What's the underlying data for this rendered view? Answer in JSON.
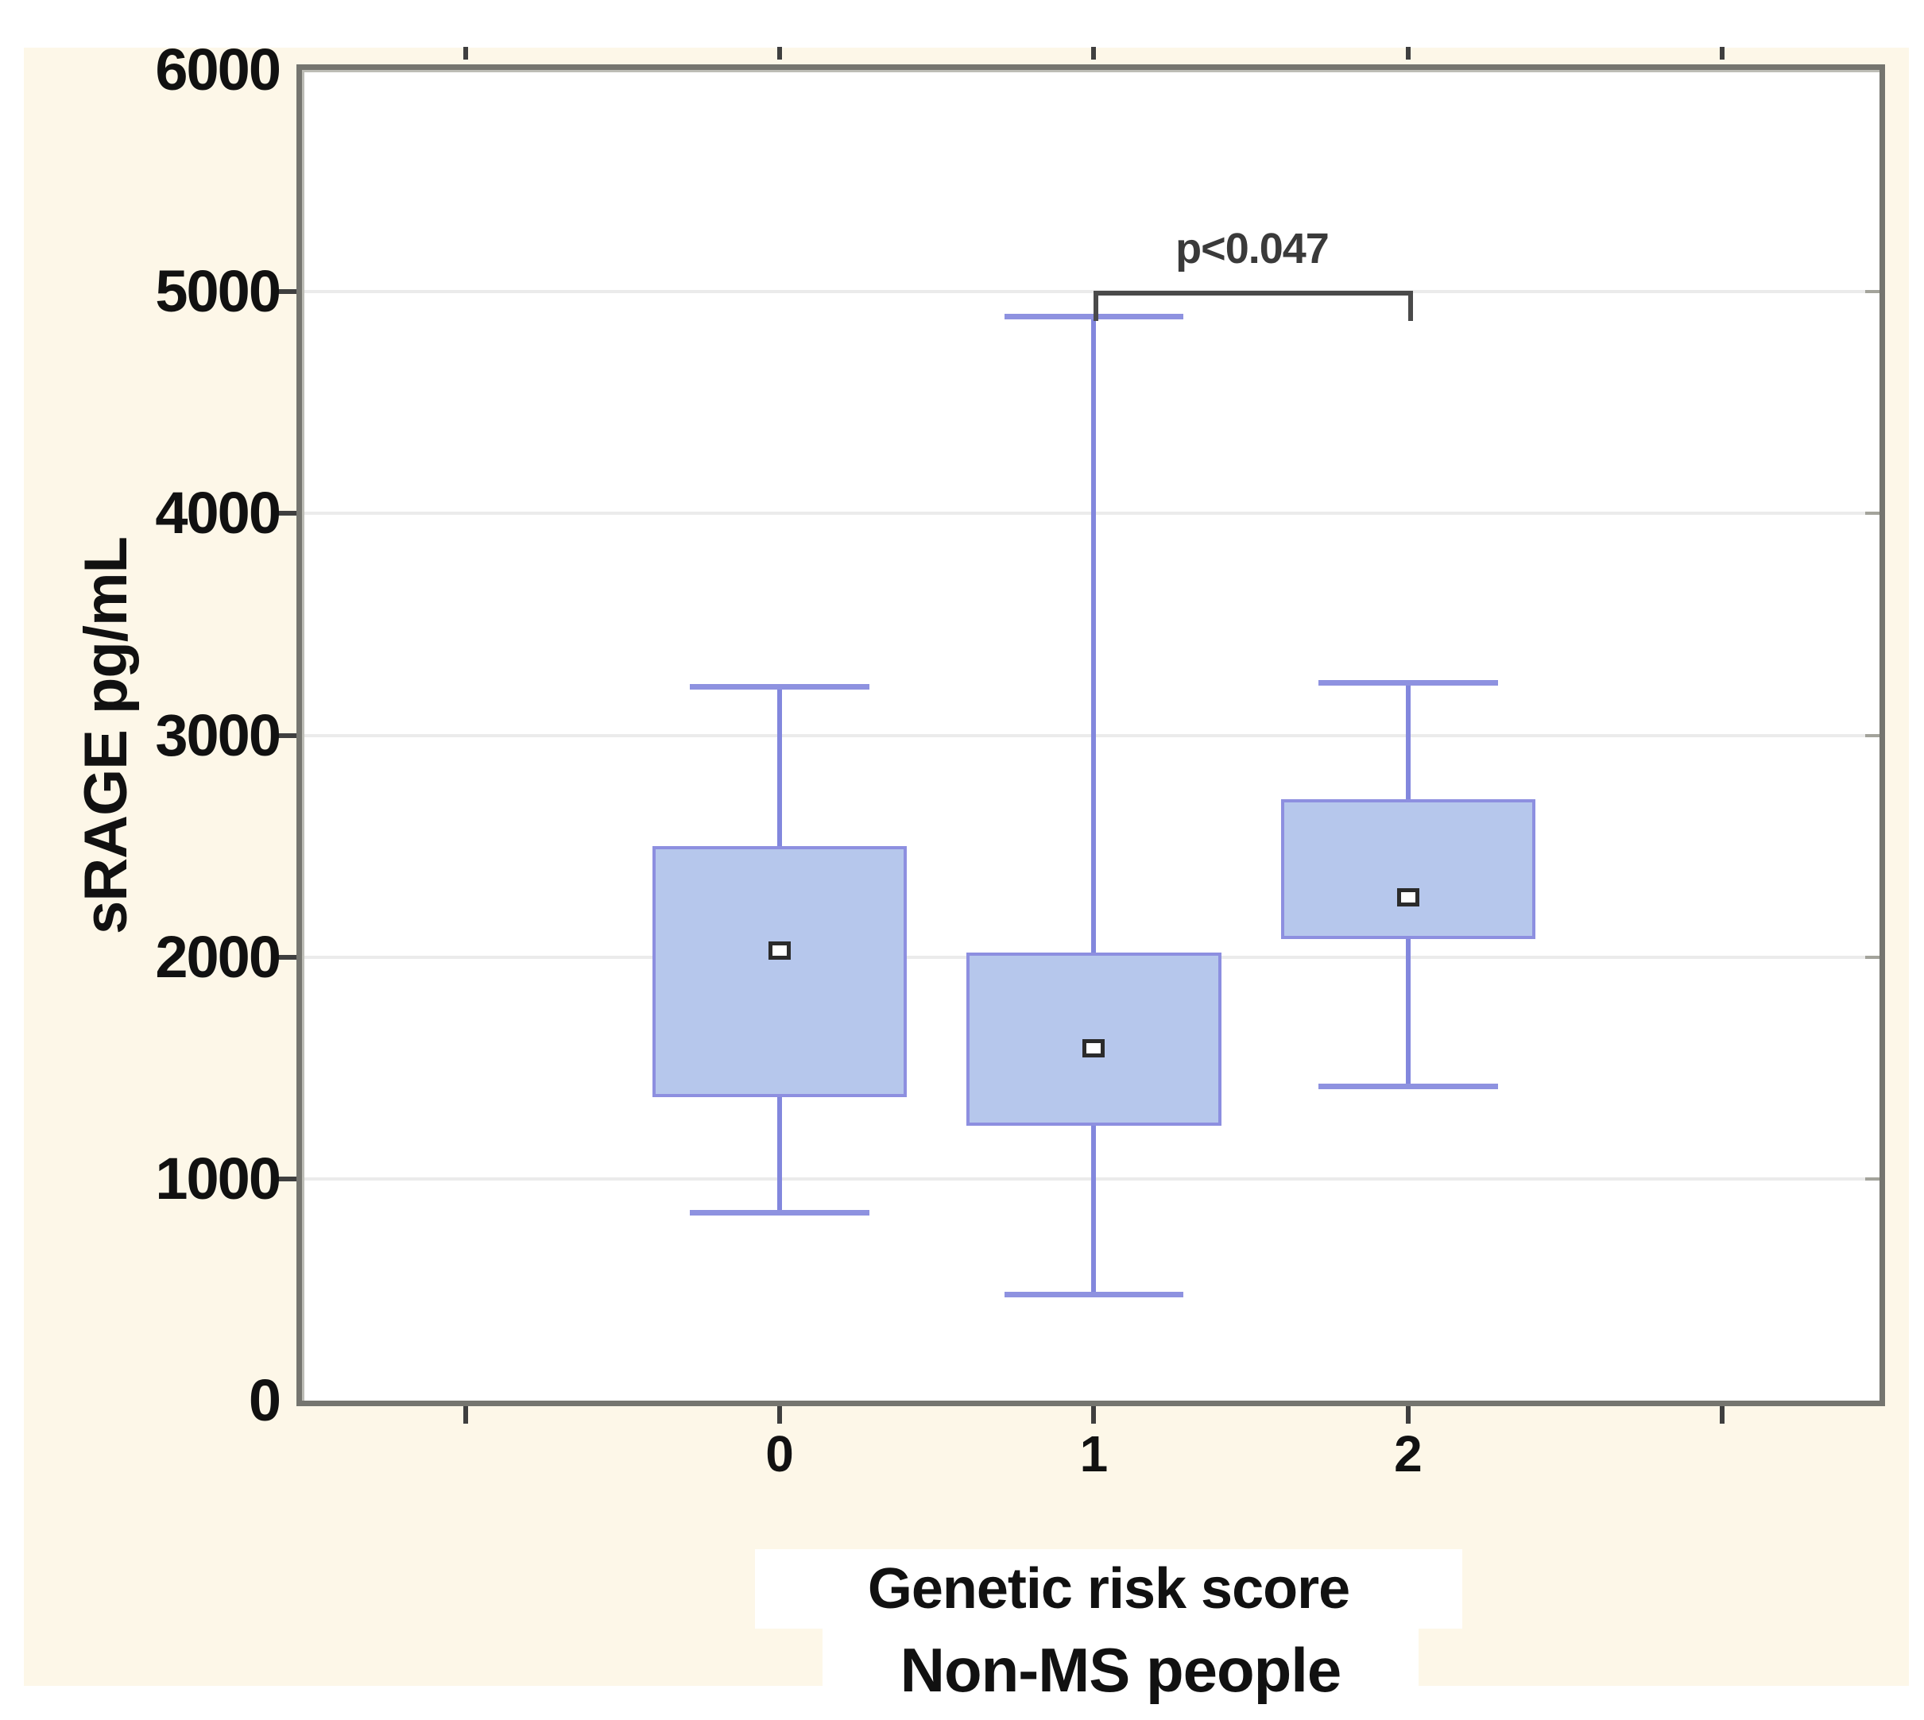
{
  "chart_data": {
    "type": "box",
    "title": "",
    "xlabel": "Genetic risk score",
    "subtitle": "Non-MS people",
    "ylabel": "sRAGE pg/mL",
    "ylim": [
      0,
      6000
    ],
    "yticks": [
      0,
      1000,
      2000,
      3000,
      4000,
      5000,
      6000
    ],
    "ytick_labels": [
      "0",
      "1000",
      "2000",
      "3000",
      "4000",
      "5000",
      "6000"
    ],
    "grid_values": [
      1000,
      2000,
      3000,
      4000,
      5000
    ],
    "grid": true,
    "xlim": [
      -1.52,
      3.5
    ],
    "xticks": [
      -1,
      0,
      1,
      2,
      3
    ],
    "xtick_labels": [
      "",
      "0",
      "1",
      "2",
      ""
    ],
    "categories": [
      "0",
      "1",
      "2"
    ],
    "series": [
      {
        "category": "0",
        "x": 0,
        "whisker_low": 850,
        "q1": 1370,
        "mean": 2030,
        "q3": 2500,
        "whisker_high": 3220
      },
      {
        "category": "1",
        "x": 1,
        "whisker_low": 480,
        "q1": 1240,
        "mean": 1590,
        "q3": 2020,
        "whisker_high": 4890
      },
      {
        "category": "2",
        "x": 2,
        "whisker_low": 1420,
        "q1": 2080,
        "mean": 2270,
        "q3": 2710,
        "whisker_high": 3240
      }
    ],
    "box_width_units": 0.81,
    "cap_width_units": 0.57,
    "annotation": {
      "label": "p<0.047",
      "from_x": 1,
      "to_x": 2
    },
    "legend_position": "none",
    "colors": {
      "box_fill": "#b6c7ec",
      "box_border": "#8d8fe0",
      "whisker": "#8287dd",
      "mean_marker_fill": "#ffffff",
      "mean_marker_border": "#2b2b2b",
      "gridline": "#ebebeb",
      "frame": "#75756f",
      "canvas_bg": "#fdf7e8",
      "plot_bg": "#ffffff",
      "text": "#111111",
      "bracket": "#4a4a4a"
    }
  }
}
